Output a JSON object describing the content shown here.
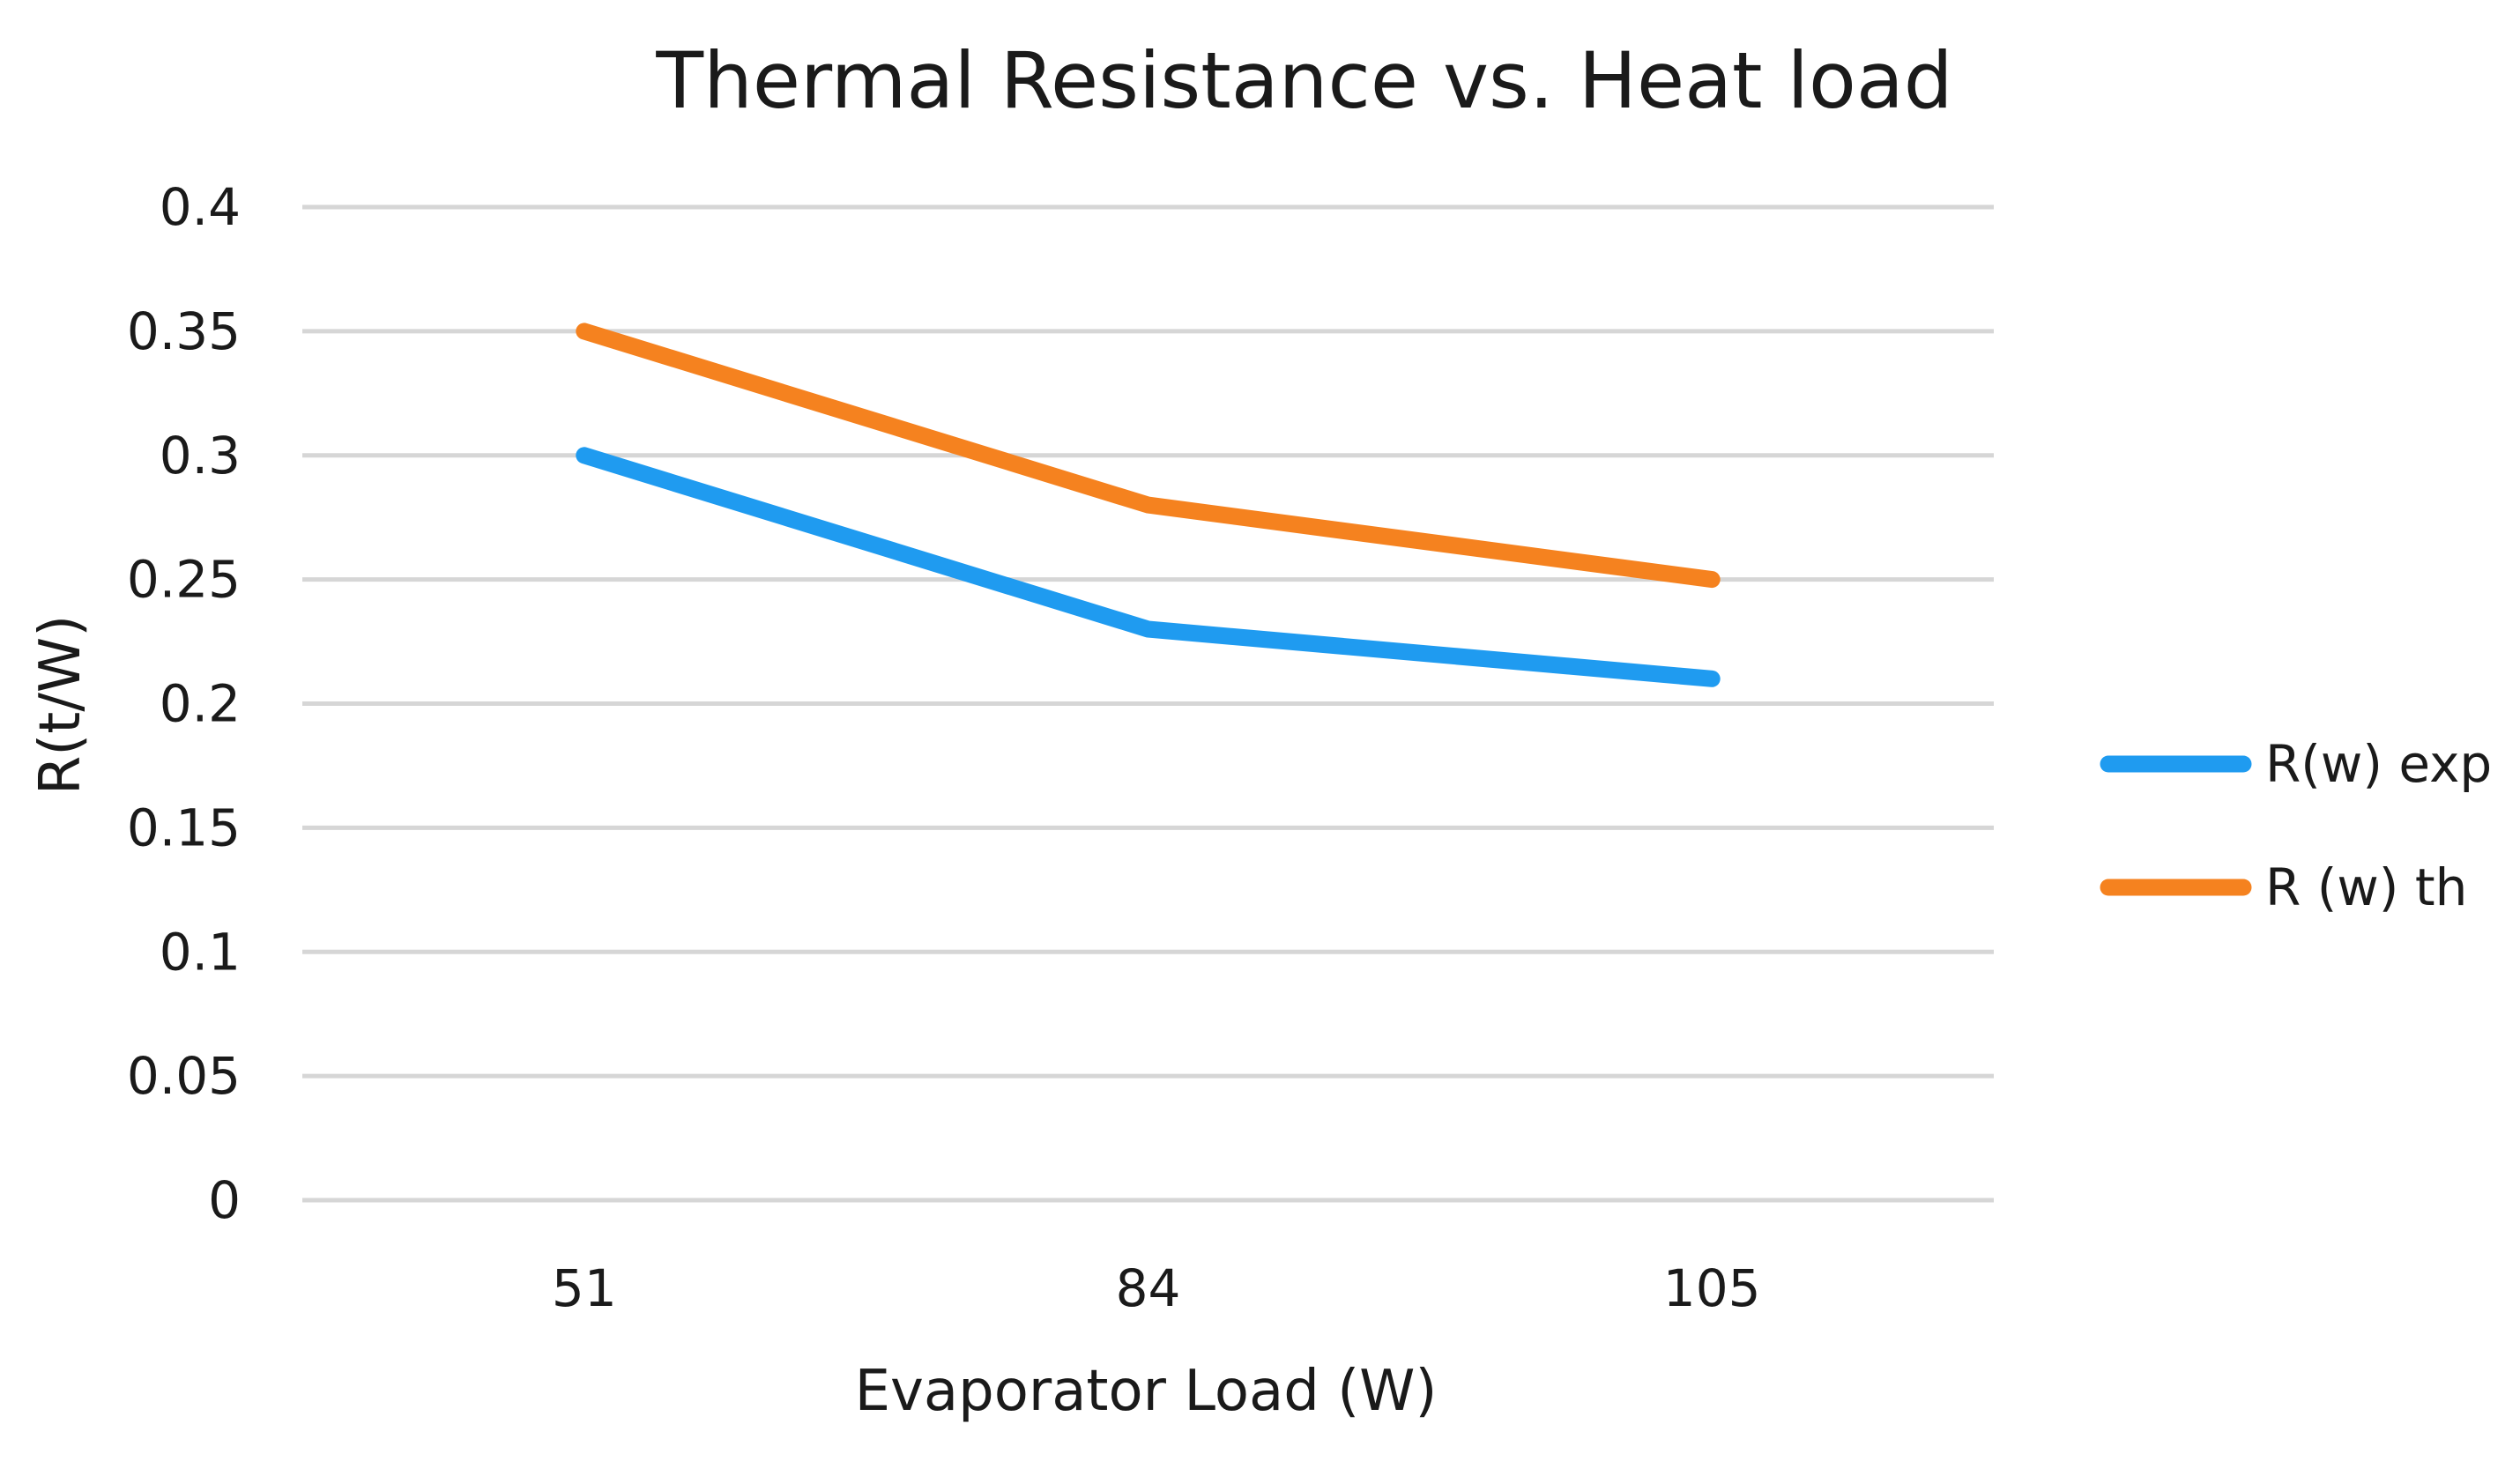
{
  "chart_data": {
    "type": "line",
    "title": "Thermal Resistance vs. Heat load",
    "xlabel": "Evaporator Load (W)",
    "ylabel": "R(t/W)",
    "categories": [
      "51",
      "84",
      "105"
    ],
    "ylim": [
      0,
      0.4
    ],
    "yticks": [
      "0",
      "0.05",
      "0.1",
      "0.15",
      "0.2",
      "0.25",
      "0.3",
      "0.35",
      "0.4"
    ],
    "ytick_values": [
      0,
      0.05,
      0.1,
      0.15,
      0.2,
      0.25,
      0.3,
      0.35,
      0.4
    ],
    "grid": true,
    "legend_position": "right",
    "series": [
      {
        "name": "R(w) exp",
        "values": [
          0.3,
          0.23,
          0.21
        ],
        "color": "#1f9bf0"
      },
      {
        "name": "R (w) th",
        "values": [
          0.35,
          0.28,
          0.25
        ],
        "color": "#f5821f"
      }
    ]
  }
}
